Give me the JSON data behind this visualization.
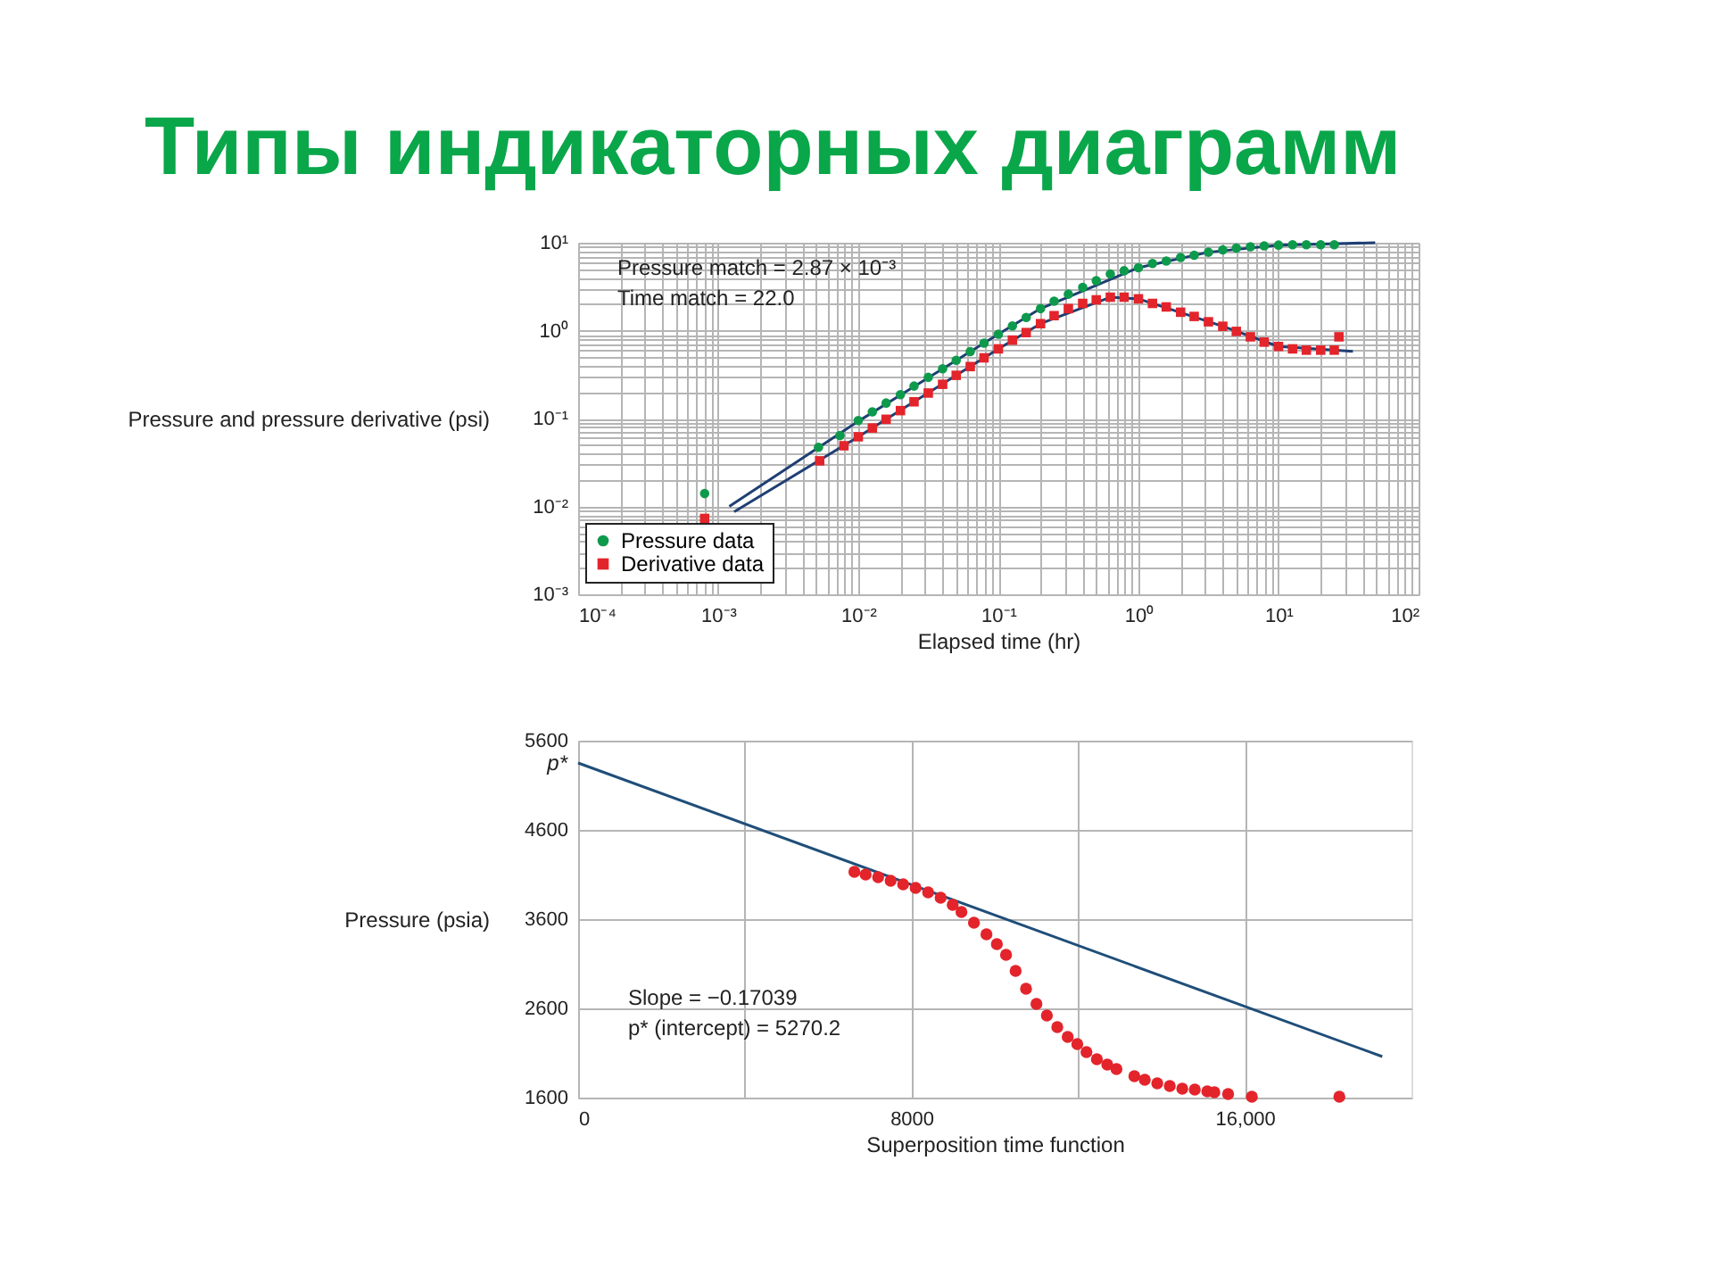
{
  "chart_data": [
    {
      "type": "scatter",
      "title": "Типы индикаторных диаграмм",
      "xlabel": "Elapsed time (hr)",
      "ylabel": "Pressure and pressure derivative (psi)",
      "log": "xy",
      "grid": true,
      "legend": "bottom left",
      "xlim": [
        0.0001,
        100
      ],
      "ylim": [
        0.001,
        10
      ],
      "xticks": [
        {
          "value": 0.0001,
          "label": "10⁻⁴"
        },
        {
          "value": 0.0002,
          "label": null
        },
        {
          "value": 0.0003,
          "label": null
        },
        {
          "value": 0.0004,
          "label": null
        },
        {
          "value": 0.0005,
          "label": null
        },
        {
          "value": 0.0006,
          "label": null
        },
        {
          "value": 0.0007,
          "label": null
        },
        {
          "value": 0.0008,
          "label": null
        },
        {
          "value": 0.0009,
          "label": null
        },
        {
          "value": 0.001,
          "label": "10⁻³"
        },
        {
          "value": 0.002,
          "label": null
        },
        {
          "value": 0.003,
          "label": null
        },
        {
          "value": 0.004,
          "label": null
        },
        {
          "value": 0.005,
          "label": null
        },
        {
          "value": 0.006,
          "label": null
        },
        {
          "value": 0.007,
          "label": null
        },
        {
          "value": 0.008,
          "label": null
        },
        {
          "value": 0.009,
          "label": null
        },
        {
          "value": 0.01,
          "label": "10⁻²"
        },
        {
          "value": 0.02,
          "label": null
        },
        {
          "value": 0.03,
          "label": null
        },
        {
          "value": 0.04,
          "label": null
        },
        {
          "value": 0.05,
          "label": null
        },
        {
          "value": 0.06,
          "label": null
        },
        {
          "value": 0.07,
          "label": null
        },
        {
          "value": 0.08,
          "label": null
        },
        {
          "value": 0.09,
          "label": null
        },
        {
          "value": 0.1,
          "label": "10⁻¹"
        },
        {
          "value": 0.2,
          "label": null
        },
        {
          "value": 0.3,
          "label": null
        },
        {
          "value": 0.4,
          "label": null
        },
        {
          "value": 0.5,
          "label": null
        },
        {
          "value": 0.6,
          "label": null
        },
        {
          "value": 0.7,
          "label": null
        },
        {
          "value": 0.8,
          "label": null
        },
        {
          "value": 0.9,
          "label": null
        },
        {
          "value": 1,
          "label": "10⁰"
        },
        {
          "value": 2,
          "label": null
        },
        {
          "value": 3,
          "label": null
        },
        {
          "value": 4,
          "label": null
        },
        {
          "value": 5,
          "label": null
        },
        {
          "value": 6,
          "label": null
        },
        {
          "value": 7,
          "label": null
        },
        {
          "value": 8,
          "label": null
        },
        {
          "value": 9,
          "label": null
        },
        {
          "value": 10,
          "label": "10¹"
        },
        {
          "value": 20,
          "label": null
        },
        {
          "value": 30,
          "label": null
        },
        {
          "value": 40,
          "label": null
        },
        {
          "value": 50,
          "label": null
        },
        {
          "value": 60,
          "label": null
        },
        {
          "value": 70,
          "label": null
        },
        {
          "value": 80,
          "label": null
        },
        {
          "value": 90,
          "label": null
        },
        {
          "value": 100,
          "label": "10²"
        }
      ],
      "yticks": [
        {
          "value": 0.001,
          "label": "10⁻³"
        },
        {
          "value": 0.002,
          "label": null
        },
        {
          "value": 0.003,
          "label": null
        },
        {
          "value": 0.004,
          "label": null
        },
        {
          "value": 0.005,
          "label": null
        },
        {
          "value": 0.006,
          "label": null
        },
        {
          "value": 0.007,
          "label": null
        },
        {
          "value": 0.008,
          "label": null
        },
        {
          "value": 0.009,
          "label": null
        },
        {
          "value": 0.01,
          "label": "10⁻²"
        },
        {
          "value": 0.02,
          "label": null
        },
        {
          "value": 0.03,
          "label": null
        },
        {
          "value": 0.04,
          "label": null
        },
        {
          "value": 0.05,
          "label": null
        },
        {
          "value": 0.06,
          "label": null
        },
        {
          "value": 0.07,
          "label": null
        },
        {
          "value": 0.08,
          "label": null
        },
        {
          "value": 0.09,
          "label": null
        },
        {
          "value": 0.1,
          "label": "10⁻¹"
        },
        {
          "value": 0.2,
          "label": null
        },
        {
          "value": 0.3,
          "label": null
        },
        {
          "value": 0.4,
          "label": null
        },
        {
          "value": 0.5,
          "label": null
        },
        {
          "value": 0.6,
          "label": null
        },
        {
          "value": 0.7,
          "label": null
        },
        {
          "value": 0.8,
          "label": null
        },
        {
          "value": 0.9,
          "label": null
        },
        {
          "value": 1,
          "label": "10⁰"
        },
        {
          "value": 2,
          "label": null
        },
        {
          "value": 3,
          "label": null
        },
        {
          "value": 4,
          "label": null
        },
        {
          "value": 5,
          "label": null
        },
        {
          "value": 6,
          "label": null
        },
        {
          "value": 7,
          "label": null
        },
        {
          "value": 8,
          "label": null
        },
        {
          "value": 9,
          "label": null
        },
        {
          "value": 10,
          "label": "10¹"
        }
      ],
      "annotations": [
        "Pressure match = 2.87 × 10⁻³",
        "Time match = 22.0"
      ],
      "series": [
        {
          "type": "line",
          "color": "#1f3f73",
          "line_style": "solid",
          "x": [
            0.0012,
            0.01,
            0.1,
            0.2,
            1,
            3.16,
            10,
            49
          ],
          "values": [
            0.01,
            0.093,
            0.91,
            1.78,
            5.2,
            7.8,
            9.4,
            10
          ]
        },
        {
          "type": "line",
          "color": "#1f3f73",
          "line_style": "solid",
          "x": [
            0.0013,
            0.01,
            0.1,
            0.2,
            0.63,
            1,
            4,
            10,
            34
          ],
          "values": [
            0.0087,
            0.062,
            0.62,
            1.2,
            2.4,
            2.3,
            1.12,
            0.66,
            0.58
          ]
        },
        {
          "type": "scatter",
          "name": "Pressure data",
          "color": "#0e9a4c",
          "marker": "circle",
          "x": [
            0.0008,
            0.0052,
            0.0074,
            0.01,
            0.0126,
            0.0158,
            0.02,
            0.025,
            0.0316,
            0.04,
            0.05,
            0.063,
            0.079,
            0.1,
            0.126,
            0.158,
            0.2,
            0.25,
            0.316,
            0.4,
            0.5,
            0.63,
            0.79,
            1,
            1.26,
            1.58,
            2,
            2.5,
            3.16,
            4,
            5,
            6.3,
            7.9,
            10,
            12.6,
            15.8,
            20,
            25
          ],
          "values": [
            0.014,
            0.047,
            0.064,
            0.095,
            0.119,
            0.15,
            0.187,
            0.234,
            0.294,
            0.368,
            0.46,
            0.577,
            0.72,
            0.91,
            1.13,
            1.41,
            1.78,
            2.16,
            2.6,
            3.1,
            3.7,
            4.4,
            4.8,
            5.2,
            5.8,
            6.2,
            6.8,
            7.2,
            7.8,
            8.3,
            8.7,
            9.0,
            9.2,
            9.4,
            9.5,
            9.5,
            9.5,
            9.5
          ]
        },
        {
          "type": "scatter",
          "name": "Derivative data",
          "color": "#e3242b",
          "marker": "square",
          "x": [
            0.0008,
            0.0053,
            0.0079,
            0.01,
            0.0126,
            0.0158,
            0.02,
            0.025,
            0.0316,
            0.04,
            0.05,
            0.063,
            0.079,
            0.1,
            0.126,
            0.158,
            0.2,
            0.25,
            0.316,
            0.4,
            0.5,
            0.63,
            0.79,
            1,
            1.26,
            1.58,
            2,
            2.5,
            3.16,
            4,
            5,
            6.3,
            7.9,
            10,
            12.6,
            15.8,
            20,
            25,
            27
          ],
          "values": [
            0.0073,
            0.033,
            0.049,
            0.062,
            0.078,
            0.098,
            0.123,
            0.155,
            0.195,
            0.245,
            0.31,
            0.39,
            0.49,
            0.62,
            0.78,
            0.95,
            1.2,
            1.48,
            1.78,
            2.04,
            2.24,
            2.4,
            2.4,
            2.3,
            2.04,
            1.86,
            1.62,
            1.45,
            1.26,
            1.12,
            0.98,
            0.85,
            0.74,
            0.66,
            0.62,
            0.6,
            0.6,
            0.6,
            0.85
          ]
        }
      ]
    },
    {
      "type": "scatter",
      "xlabel": "Superposition time function",
      "ylabel": "Pressure (psia)",
      "grid": true,
      "xlim": [
        0,
        20000
      ],
      "ylim": [
        1600,
        5600
      ],
      "xticks": [
        0,
        {
          "value": 4000,
          "label": null
        },
        8000,
        {
          "value": 12000,
          "label": null
        },
        {
          "value": 16000,
          "label": "16,000"
        }
      ],
      "yticks": [
        1600,
        2600,
        3600,
        4600,
        5600
      ],
      "annotations": [
        "Slope = −0.17039",
        "p* (intercept) = 5270.2",
        {
          "text": "p*",
          "x": 0,
          "y": 5350
        }
      ],
      "series": [
        {
          "type": "line",
          "color": "#1f4e79",
          "line_style": "solid",
          "x": [
            0,
            19300
          ],
          "values": [
            5350,
            2060
          ]
        },
        {
          "type": "scatter",
          "color": "#e3242b",
          "marker": "circle",
          "x": [
            6630,
            6900,
            7200,
            7500,
            7800,
            8100,
            8400,
            8700,
            8990,
            9200,
            9500,
            9800,
            10050,
            10270,
            10500,
            10750,
            11000,
            11250,
            11500,
            11750,
            11980,
            12200,
            12450,
            12700,
            12920,
            13350,
            13600,
            13900,
            14200,
            14500,
            14800,
            15100,
            15270,
            15600,
            16170,
            18270
          ],
          "values": [
            4130,
            4100,
            4070,
            4030,
            3990,
            3950,
            3900,
            3840,
            3760,
            3680,
            3560,
            3430,
            3320,
            3200,
            3020,
            2820,
            2650,
            2520,
            2390,
            2280,
            2200,
            2110,
            2030,
            1970,
            1920,
            1840,
            1800,
            1760,
            1730,
            1700,
            1690,
            1670,
            1660,
            1640,
            1610,
            1610
          ]
        }
      ]
    }
  ]
}
